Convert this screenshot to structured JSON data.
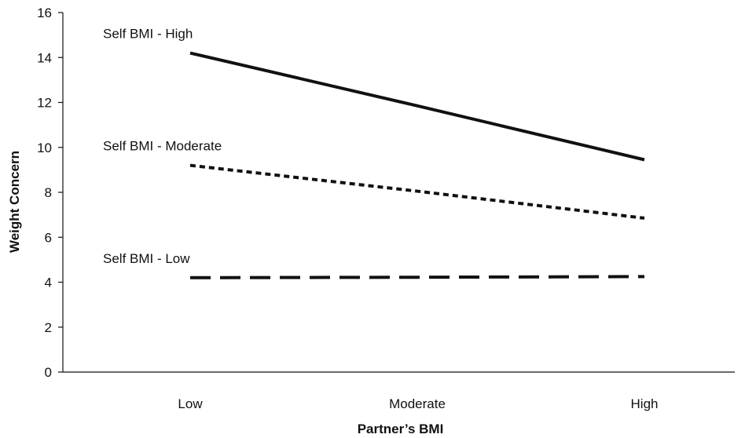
{
  "chart_data": {
    "type": "line",
    "title": "",
    "xlabel": "Partner’s BMI",
    "ylabel": "Weight Concern",
    "categories": [
      "Low",
      "Moderate",
      "High"
    ],
    "ylim": [
      0,
      16
    ],
    "yticks": [
      0,
      2,
      4,
      6,
      8,
      10,
      12,
      14,
      16
    ],
    "grid": false,
    "legend": "none",
    "series": [
      {
        "name": "Self BMI - High",
        "values": [
          14.2,
          11.85,
          9.45
        ],
        "style": "solid",
        "color": "#111111"
      },
      {
        "name": "Self BMI - Moderate",
        "values": [
          9.2,
          8.05,
          6.85
        ],
        "style": "dotted",
        "color": "#111111"
      },
      {
        "name": "Self BMI - Low",
        "values": [
          4.2,
          4.22,
          4.25
        ],
        "style": "dashed",
        "color": "#111111"
      }
    ]
  }
}
